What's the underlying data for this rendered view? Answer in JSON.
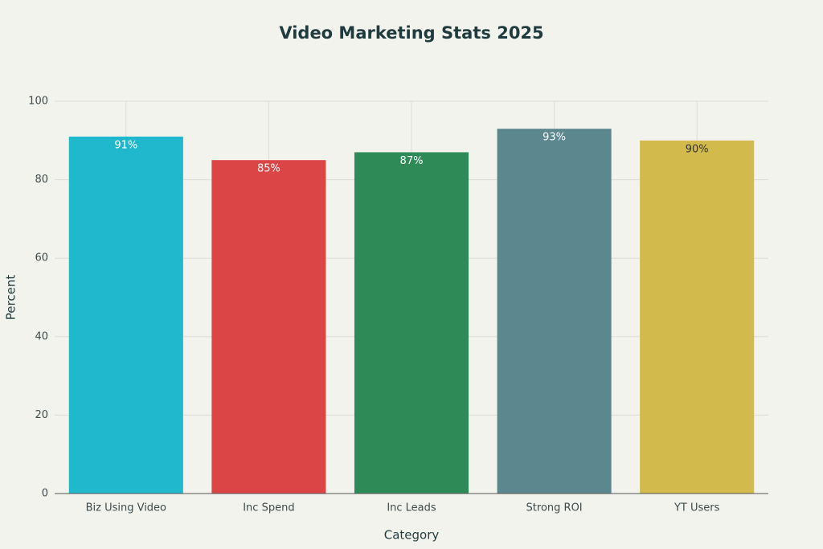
{
  "chart_data": {
    "type": "bar",
    "title": "Video Marketing Stats 2025",
    "x_label": "Category",
    "y_label": "Percent",
    "categories": [
      "Biz Using Video",
      "Inc Spend",
      "Inc Leads",
      "Strong ROI",
      "YT Users"
    ],
    "values": [
      91,
      85,
      87,
      93,
      90
    ],
    "value_labels": [
      "91%",
      "85%",
      "87%",
      "93%",
      "90%"
    ],
    "colors": [
      "#1fb8cd",
      "#db4545",
      "#2e8b57",
      "#5d878f",
      "#d2ba4c"
    ],
    "ylim": [
      0,
      100
    ],
    "yticks": [
      0,
      20,
      40,
      60,
      80,
      100
    ],
    "grid": true
  }
}
